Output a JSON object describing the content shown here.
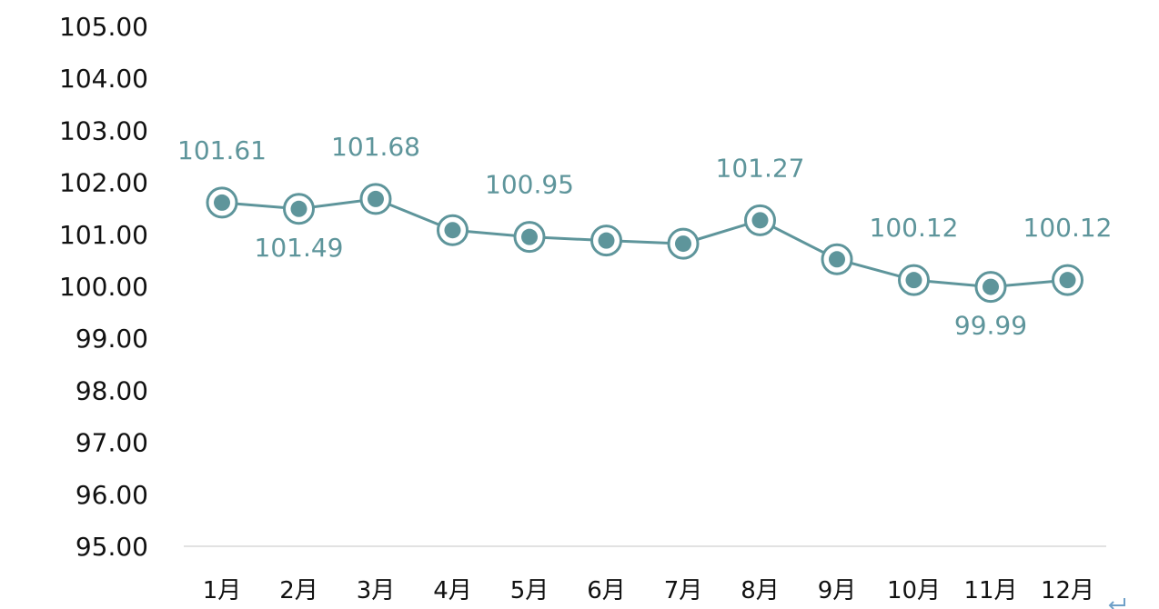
{
  "chart_data": {
    "type": "line",
    "categories": [
      "1月",
      "2月",
      "3月",
      "4月",
      "5月",
      "6月",
      "7月",
      "8月",
      "9月",
      "10月",
      "11月",
      "12月"
    ],
    "series": [
      {
        "values": [
          101.61,
          101.49,
          101.68,
          101.08,
          100.95,
          100.88,
          100.82,
          101.27,
          100.52,
          100.12,
          99.99,
          100.12
        ],
        "labels": [
          "101.61",
          "101.49",
          "101.68",
          null,
          "100.95",
          null,
          null,
          "101.27",
          null,
          "100.12",
          "99.99",
          "100.12"
        ],
        "label_positions": [
          "above",
          "below",
          "above",
          null,
          "above",
          null,
          null,
          "above",
          null,
          "above",
          "below",
          "above"
        ]
      }
    ],
    "ylim": [
      95.0,
      105.0
    ],
    "yticks": [
      "105.00",
      "104.00",
      "103.00",
      "102.00",
      "101.00",
      "100.00",
      "99.00",
      "98.00",
      "97.00",
      "96.00",
      "95.00"
    ],
    "grid": false,
    "colors": {
      "line": "#5e959b",
      "marker_fill": "#5e959b",
      "marker_ring": "#5e959b",
      "label": "#5e959b",
      "axis": "#d9d9d9"
    }
  }
}
